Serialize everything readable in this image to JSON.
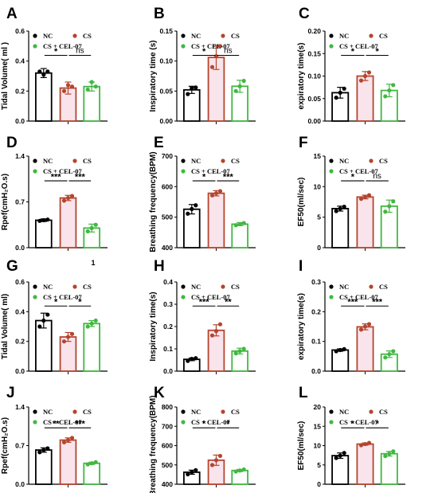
{
  "colors": {
    "NC": "#000000",
    "CS": "#b5452e",
    "CS + CEL-07": "#41b841",
    "cs_fill": "#f9e4ec"
  },
  "stray_text": "1",
  "chart_data": [
    {
      "type": "bar",
      "panel": "A",
      "ylabel": "Tidal Volume( ml )",
      "categories": [
        "NC",
        "CS",
        "CS + CEL-07"
      ],
      "ylim": [
        0,
        0.6
      ],
      "yticks": [
        "0.0",
        "0.2",
        "0.4",
        "0.6"
      ],
      "legend_cols": 2,
      "values": [
        0.32,
        0.22,
        0.23
      ],
      "errors": [
        0.03,
        0.04,
        0.03
      ],
      "points": [
        [
          0.33,
          0.31,
          0.33
        ],
        [
          0.2,
          0.24,
          0.23
        ],
        [
          0.21,
          0.26,
          0.23
        ]
      ],
      "sig": [
        "*",
        "ns"
      ]
    },
    {
      "type": "bar",
      "panel": "B",
      "ylabel": "Inspiratory time (s)",
      "categories": [
        "NC",
        "CS",
        "CS + CEL-07"
      ],
      "ylim": [
        0,
        0.15
      ],
      "yticks": [
        "0.00",
        "0.05",
        "0.10",
        "0.15"
      ],
      "legend_cols": 2,
      "values": [
        0.052,
        0.106,
        0.058
      ],
      "errors": [
        0.006,
        0.02,
        0.01
      ],
      "points": [
        [
          0.045,
          0.055,
          0.056
        ],
        [
          0.09,
          0.108,
          0.125
        ],
        [
          0.05,
          0.058,
          0.067
        ]
      ],
      "sig": [
        "*",
        "ns"
      ]
    },
    {
      "type": "bar",
      "panel": "C",
      "ylabel": "expiratory time(s)",
      "categories": [
        "NC",
        "CS",
        "CS + CEL-07"
      ],
      "ylim": [
        0,
        0.2
      ],
      "yticks": [
        "0.00",
        "0.05",
        "0.10",
        "0.15",
        "0.20"
      ],
      "legend_cols": 2,
      "values": [
        0.063,
        0.1,
        0.068
      ],
      "errors": [
        0.012,
        0.01,
        0.014
      ],
      "points": [
        [
          0.052,
          0.063,
          0.072
        ],
        [
          0.09,
          0.1,
          0.108
        ],
        [
          0.055,
          0.068,
          0.08
        ]
      ],
      "sig": [
        "*",
        "*"
      ]
    },
    {
      "type": "bar",
      "panel": "D",
      "ylabel": "Rpef(cmH₂O.s)",
      "categories": [
        "NC",
        "CS",
        "CS + CEL-07"
      ],
      "ylim": [
        0,
        1.4
      ],
      "yticks": [
        "0.0",
        "0.7",
        "1.4"
      ],
      "legend_cols": 2,
      "values": [
        0.42,
        0.76,
        0.3
      ],
      "errors": [
        0.02,
        0.04,
        0.06
      ],
      "points": [
        [
          0.41,
          0.42,
          0.43
        ],
        [
          0.72,
          0.76,
          0.79
        ],
        [
          0.25,
          0.3,
          0.35
        ]
      ],
      "sig": [
        "***",
        "***"
      ]
    },
    {
      "type": "bar",
      "panel": "E",
      "ylabel": "Breathing frequency(BPM)",
      "categories": [
        "NC",
        "CS",
        "CS + CEL-07"
      ],
      "ylim": [
        350,
        700
      ],
      "yticks": [
        "400",
        "500",
        "600",
        "700"
      ],
      "legend_cols": 2,
      "values": [
        497,
        558,
        440
      ],
      "errors": [
        18,
        10,
        6
      ],
      "points": [
        [
          480,
          498,
          512
        ],
        [
          550,
          558,
          566
        ],
        [
          436,
          440,
          444
        ]
      ],
      "sig": [
        "*",
        "***"
      ]
    },
    {
      "type": "bar",
      "panel": "F",
      "ylabel": "EF50(ml/sec)",
      "categories": [
        "NC",
        "CS",
        "CS + CEL-07"
      ],
      "ylim": [
        0,
        15
      ],
      "yticks": [
        "0",
        "5",
        "10",
        "15"
      ],
      "legend_cols": 2,
      "values": [
        6.4,
        8.3,
        6.8
      ],
      "errors": [
        0.4,
        0.3,
        1.0
      ],
      "points": [
        [
          6.0,
          6.4,
          6.7
        ],
        [
          8.0,
          8.3,
          8.6
        ],
        [
          5.9,
          6.8,
          7.6
        ]
      ],
      "sig": [
        "*",
        "ns"
      ]
    },
    {
      "type": "bar",
      "panel": "G",
      "ylabel": "Tidal Volume( ml)",
      "categories": [
        "NC",
        "CS",
        "CS + CEL-07"
      ],
      "ylim": [
        0,
        0.6
      ],
      "yticks": [
        "0.0",
        "0.2",
        "0.4",
        "0.6"
      ],
      "legend_cols": 2,
      "values": [
        0.34,
        0.23,
        0.32
      ],
      "errors": [
        0.05,
        0.03,
        0.02
      ],
      "points": [
        [
          0.3,
          0.34,
          0.38
        ],
        [
          0.2,
          0.23,
          0.25
        ],
        [
          0.3,
          0.32,
          0.34
        ]
      ],
      "sig": [
        "*",
        "*"
      ]
    },
    {
      "type": "bar",
      "panel": "H",
      "ylabel": "Inspiratory time(s)",
      "categories": [
        "NC",
        "CS",
        "CS + CEL-07"
      ],
      "ylim": [
        0,
        0.4
      ],
      "yticks": [
        "0.0",
        "0.1",
        "0.2",
        "0.3",
        "0.4"
      ],
      "legend_cols": 2,
      "values": [
        0.053,
        0.183,
        0.09
      ],
      "errors": [
        0.006,
        0.025,
        0.013
      ],
      "points": [
        [
          0.046,
          0.055,
          0.058
        ],
        [
          0.16,
          0.18,
          0.21
        ],
        [
          0.08,
          0.09,
          0.1
        ]
      ],
      "sig": [
        "***",
        "**"
      ]
    },
    {
      "type": "bar",
      "panel": "I",
      "ylabel": "expiratory time(s)",
      "categories": [
        "NC",
        "CS",
        "CS + CEL-07"
      ],
      "ylim": [
        0,
        0.3
      ],
      "yticks": [
        "0.0",
        "0.1",
        "0.2",
        "0.3"
      ],
      "legend_cols": 2,
      "values": [
        0.071,
        0.149,
        0.057
      ],
      "errors": [
        0.004,
        0.01,
        0.011
      ],
      "points": [
        [
          0.067,
          0.071,
          0.074
        ],
        [
          0.14,
          0.15,
          0.158
        ],
        [
          0.046,
          0.057,
          0.067
        ]
      ],
      "sig": [
        "***",
        "***"
      ]
    },
    {
      "type": "bar",
      "panel": "J",
      "ylabel": "Rpef(cmH₂O.s)",
      "categories": [
        "NC",
        "CS",
        "CS + CEL-07"
      ],
      "ylim": [
        0,
        1.4
      ],
      "yticks": [
        "0.0",
        "0.7",
        "1.4"
      ],
      "legend_cols": 2,
      "values": [
        0.62,
        0.8,
        0.38
      ],
      "errors": [
        0.04,
        0.04,
        0.02
      ],
      "points": [
        [
          0.58,
          0.62,
          0.65
        ],
        [
          0.76,
          0.8,
          0.84
        ],
        [
          0.36,
          0.38,
          0.4
        ]
      ],
      "sig": [
        "**",
        "***"
      ]
    },
    {
      "type": "bar",
      "panel": "K",
      "ylabel": "Breathing frequency(BPM)",
      "categories": [
        "NC",
        "CS",
        "CS + CEL-07"
      ],
      "ylim": [
        350,
        800
      ],
      "yticks": [
        "400",
        "500",
        "600",
        "700",
        "800"
      ],
      "legend_cols": 2,
      "values": [
        420,
        490,
        430
      ],
      "errors": [
        12,
        30,
        6
      ],
      "points": [
        [
          408,
          420,
          432
        ],
        [
          462,
          490,
          515
        ],
        [
          424,
          430,
          436
        ]
      ],
      "sig": [
        "*",
        "*"
      ]
    },
    {
      "type": "bar",
      "panel": "L",
      "ylabel": "EF50(ml/sec)",
      "categories": [
        "NC",
        "CS",
        "CS + CEL-07"
      ],
      "ylim": [
        0,
        20
      ],
      "yticks": [
        "0",
        "5",
        "10",
        "15",
        "20"
      ],
      "legend_cols": 1,
      "values": [
        7.4,
        10.4,
        7.9
      ],
      "errors": [
        0.7,
        0.3,
        0.6
      ],
      "points": [
        [
          6.8,
          7.4,
          8.1
        ],
        [
          10.1,
          10.4,
          10.7
        ],
        [
          7.3,
          7.9,
          8.5
        ]
      ],
      "sig": [
        "*",
        "*"
      ]
    }
  ]
}
